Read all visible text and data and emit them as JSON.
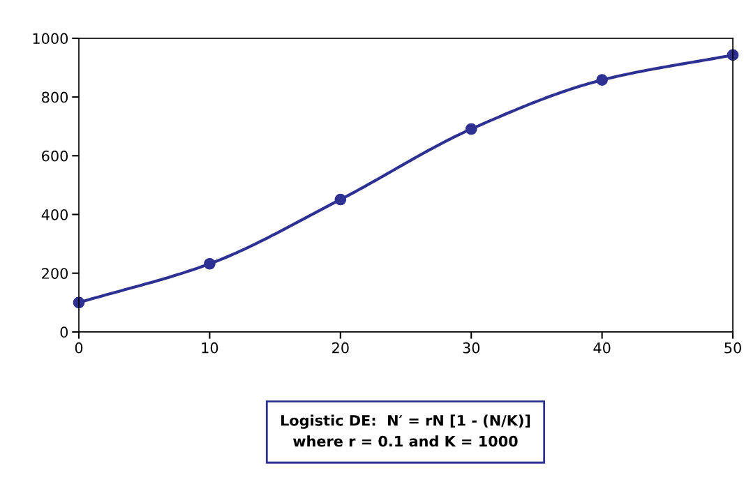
{
  "chart_data": {
    "type": "line",
    "x": [
      0,
      10,
      20,
      30,
      40,
      50
    ],
    "series": [
      {
        "color": "#2e3192",
        "values": [
          100,
          232,
          451,
          691,
          858,
          943
        ]
      }
    ],
    "xlim": [
      0,
      50
    ],
    "xticks": [
      0,
      10,
      20,
      30,
      40,
      50
    ],
    "ylim": [
      0,
      1000
    ],
    "yticks": [
      0,
      200,
      400,
      600,
      800,
      1000
    ],
    "grid": false,
    "legend": false,
    "marker": "circle",
    "line_style": "solid",
    "annotations": [
      "Logistic DE:  N′ = rN [1 - (N/K)]\nwhere r = 0.1 and K = 1000"
    ]
  }
}
